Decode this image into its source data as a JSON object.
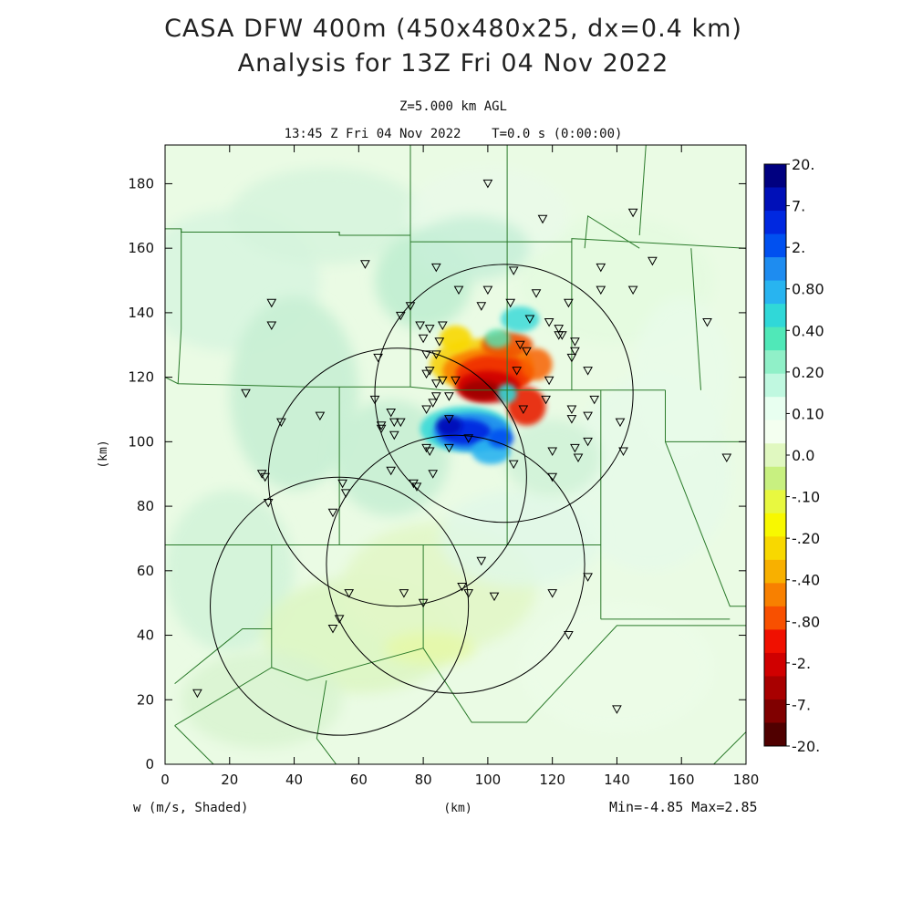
{
  "chart_data": {
    "type": "heatmap",
    "title_line1": "CASA DFW 400m (450x480x25, dx=0.4 km)",
    "title_line2": "Analysis for 13Z Fri 04 Nov 2022",
    "subtitle_line1": "Z=5.000 km AGL",
    "subtitle_line2": "13:45 Z Fri 04 Nov 2022    T=0.0 s (0:00:00)",
    "xlabel": "(km)",
    "ylabel": "(km)",
    "variable_label": "w (m/s, Shaded)",
    "minmax_label": "Min=-4.85 Max=2.85",
    "xlim": [
      0,
      180
    ],
    "ylim": [
      0,
      192
    ],
    "xticks": [
      0,
      20,
      40,
      60,
      80,
      100,
      120,
      140,
      160,
      180
    ],
    "yticks": [
      0,
      20,
      40,
      60,
      80,
      100,
      120,
      140,
      160,
      180
    ],
    "colorbar": {
      "labels": [
        "20.",
        "7.",
        "2.",
        "0.80",
        "0.40",
        "0.20",
        "0.10",
        "0.0",
        "-.10",
        "-.20",
        "-.40",
        "-.80",
        "-2.",
        "-7.",
        "-20."
      ],
      "colors": [
        "#000080",
        "#0010b8",
        "#0028e0",
        "#0050f0",
        "#1e8cf0",
        "#28b4f0",
        "#30d8d8",
        "#50e8b8",
        "#90f0c8",
        "#c0f8e0",
        "#e8fff0",
        "#f4fff0",
        "#e0f8c0",
        "#c8f080",
        "#e8f840",
        "#f8f800",
        "#f8d800",
        "#f8b000",
        "#f88000",
        "#f85000",
        "#f01000",
        "#d00000",
        "#a80000",
        "#800000",
        "#500000"
      ]
    },
    "radar_rings_km": [
      {
        "cx": 105,
        "cy": 115,
        "r": 40
      },
      {
        "cx": 90,
        "cy": 62,
        "r": 40
      },
      {
        "cx": 54,
        "cy": 49,
        "r": 40
      },
      {
        "cx": 72,
        "cy": 89,
        "r": 40
      }
    ],
    "updraft_core": {
      "x": 100,
      "y": 119,
      "w_max": 2.85
    },
    "downdraft_core": {
      "x": 96,
      "y": 102,
      "w_min": -4.85
    },
    "stations": [
      [
        10,
        22
      ],
      [
        25,
        115
      ],
      [
        30,
        90
      ],
      [
        31,
        89
      ],
      [
        32,
        81
      ],
      [
        33,
        143
      ],
      [
        33,
        136
      ],
      [
        36,
        106
      ],
      [
        48,
        108
      ],
      [
        52,
        78
      ],
      [
        52,
        42
      ],
      [
        54,
        45
      ],
      [
        55,
        87
      ],
      [
        56,
        84
      ],
      [
        57,
        53
      ],
      [
        62,
        155
      ],
      [
        65,
        113
      ],
      [
        66,
        126
      ],
      [
        67,
        104
      ],
      [
        67,
        105
      ],
      [
        70,
        109
      ],
      [
        70,
        91
      ],
      [
        71,
        102
      ],
      [
        71,
        106
      ],
      [
        73,
        106
      ],
      [
        73,
        139
      ],
      [
        74,
        53
      ],
      [
        76,
        142
      ],
      [
        77,
        87
      ],
      [
        78,
        86
      ],
      [
        79,
        136
      ],
      [
        80,
        50
      ],
      [
        80,
        132
      ],
      [
        81,
        127
      ],
      [
        81,
        121
      ],
      [
        81,
        98
      ],
      [
        81,
        110
      ],
      [
        82,
        122
      ],
      [
        82,
        97
      ],
      [
        82,
        135
      ],
      [
        83,
        112
      ],
      [
        83,
        90
      ],
      [
        84,
        127
      ],
      [
        84,
        154
      ],
      [
        84,
        118
      ],
      [
        84,
        114
      ],
      [
        85,
        131
      ],
      [
        86,
        119
      ],
      [
        86,
        136
      ],
      [
        88,
        114
      ],
      [
        88,
        107
      ],
      [
        88,
        98
      ],
      [
        90,
        119
      ],
      [
        91,
        147
      ],
      [
        92,
        55
      ],
      [
        94,
        101
      ],
      [
        94,
        53
      ],
      [
        98,
        142
      ],
      [
        98,
        63
      ],
      [
        100,
        180
      ],
      [
        100,
        147
      ],
      [
        102,
        52
      ],
      [
        107,
        143
      ],
      [
        108,
        153
      ],
      [
        108,
        93
      ],
      [
        109,
        122
      ],
      [
        110,
        130
      ],
      [
        111,
        110
      ],
      [
        112,
        128
      ],
      [
        113,
        138
      ],
      [
        115,
        146
      ],
      [
        117,
        169
      ],
      [
        118,
        113
      ],
      [
        119,
        137
      ],
      [
        119,
        119
      ],
      [
        120,
        97
      ],
      [
        120,
        89
      ],
      [
        120,
        53
      ],
      [
        122,
        133
      ],
      [
        122,
        135
      ],
      [
        123,
        133
      ],
      [
        125,
        143
      ],
      [
        126,
        126
      ],
      [
        126,
        110
      ],
      [
        126,
        107
      ],
      [
        127,
        131
      ],
      [
        127,
        128
      ],
      [
        127,
        98
      ],
      [
        128,
        95
      ],
      [
        131,
        122
      ],
      [
        131,
        108
      ],
      [
        131,
        100
      ],
      [
        131,
        58
      ],
      [
        133,
        113
      ],
      [
        135,
        154
      ],
      [
        135,
        147
      ],
      [
        140,
        17
      ],
      [
        141,
        106
      ],
      [
        142,
        97
      ],
      [
        145,
        147
      ],
      [
        145,
        171
      ],
      [
        151,
        156
      ],
      [
        168,
        137
      ],
      [
        174,
        95
      ],
      [
        125,
        40
      ]
    ]
  }
}
